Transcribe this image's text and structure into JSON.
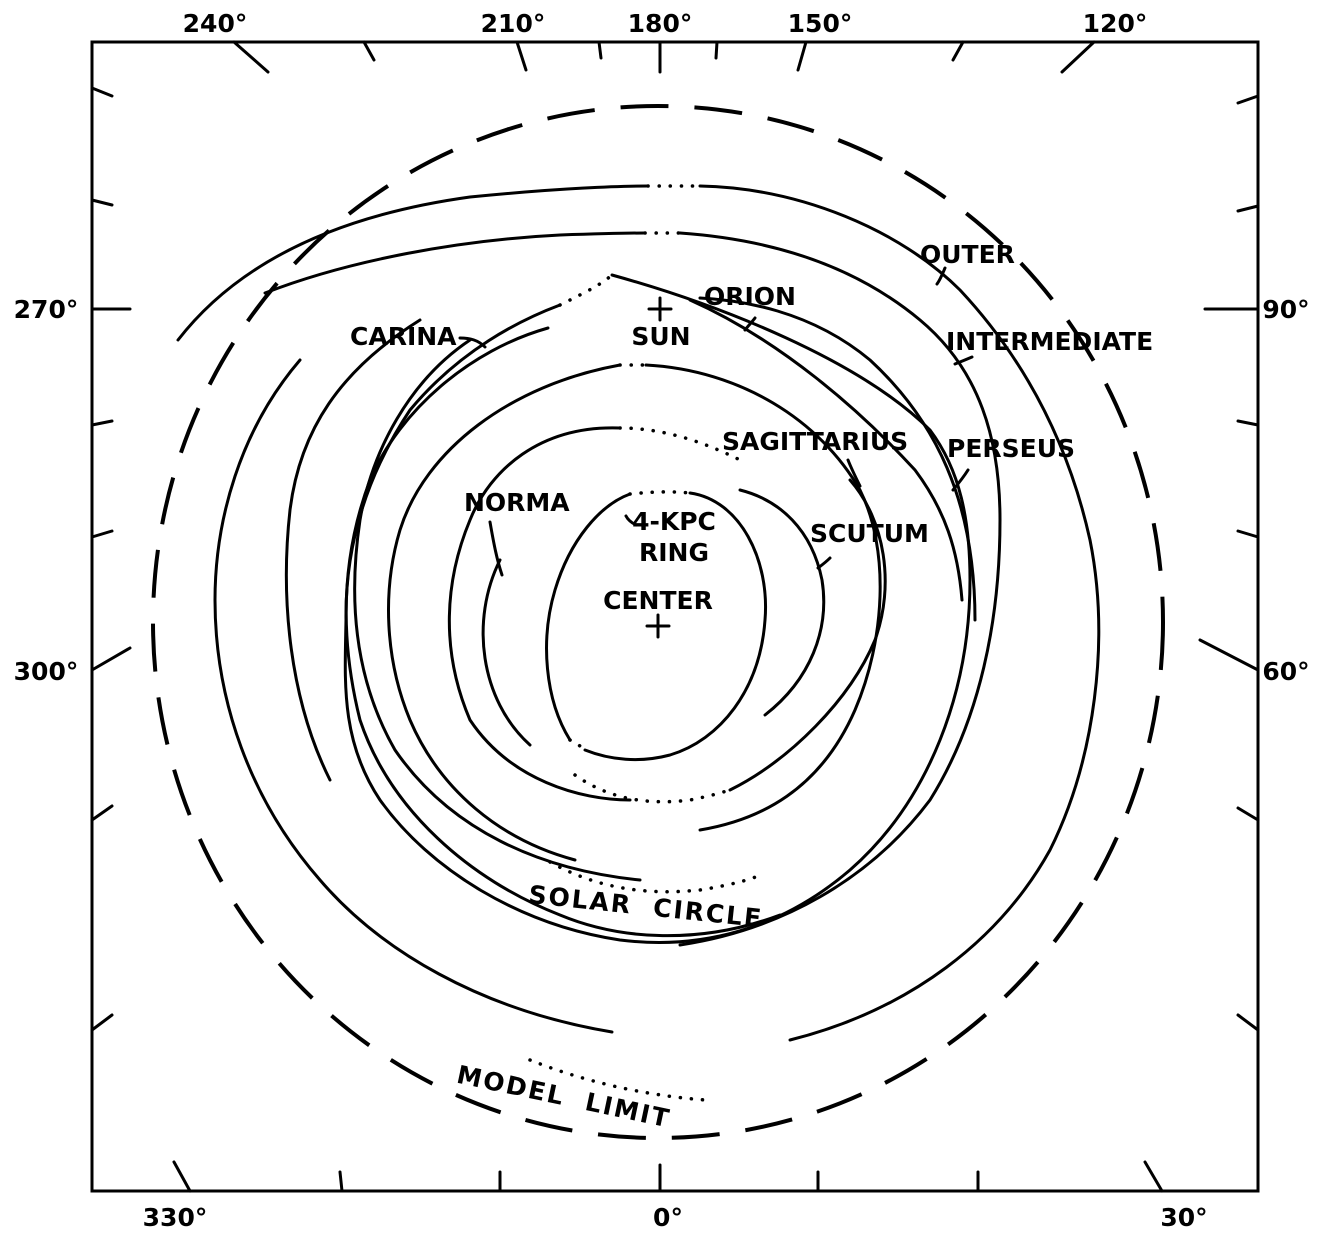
{
  "longitude_labels": {
    "top": [
      "240°",
      "210°",
      "180°",
      "150°",
      "120°"
    ],
    "left": [
      "270°",
      "300°"
    ],
    "right": [
      "90°",
      "60°"
    ],
    "bottom": [
      "330°",
      "0°",
      "30°"
    ]
  },
  "arm_labels": {
    "outer": "OUTER",
    "orion": "ORION",
    "intermediate": "INTERMEDIATE",
    "carina": "CARINA",
    "sagittarius": "SAGITTARIUS",
    "perseus": "PERSEUS",
    "norma": "NORMA",
    "scutum": "SCUTUM",
    "kpc_ring_line1": "4-KPC",
    "kpc_ring_line2": "RING"
  },
  "markers": {
    "sun": "SUN",
    "center": "CENTER"
  },
  "curve_labels": {
    "solar_circle": "SOLAR  CIRCLE",
    "model_limit": "MODEL  LIMIT"
  }
}
